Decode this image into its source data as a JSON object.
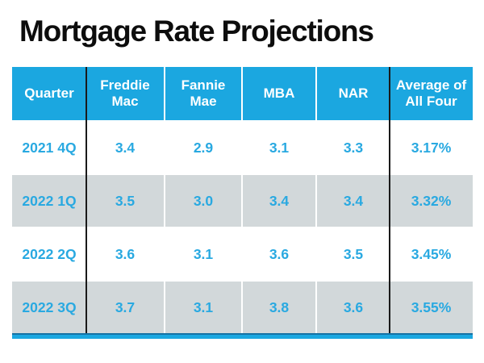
{
  "title": "Mortgage Rate Projections",
  "chart_data": {
    "type": "table",
    "title": "Mortgage Rate Projections",
    "columns": [
      "Quarter",
      "Freddie Mac",
      "Fannie Mae",
      "MBA",
      "NAR",
      "Average of All Four"
    ],
    "rows": [
      [
        "2021 4Q",
        "3.4",
        "2.9",
        "3.1",
        "3.3",
        "3.17%"
      ],
      [
        "2022 1Q",
        "3.5",
        "3.0",
        "3.4",
        "3.4",
        "3.32%"
      ],
      [
        "2022 2Q",
        "3.6",
        "3.1",
        "3.6",
        "3.5",
        "3.45%"
      ],
      [
        "2022 3Q",
        "3.7",
        "3.1",
        "3.8",
        "3.6",
        "3.55%"
      ]
    ],
    "layout": {
      "row_striping": "white / light-gray alternating starting white",
      "dark_column_dividers_after": [
        "Quarter",
        "NAR"
      ],
      "bottom_accent_bar": true
    }
  },
  "colors": {
    "header_bg": "#1ba7e0",
    "accent_blue": "#1ba7e0",
    "row_alt_bg": "#d2d8da",
    "data_text": "#29a9e1",
    "header_text": "#ffffff",
    "divider_dark": "#1a1a1a",
    "bottom_bar_edge": "#1572a4",
    "title_text": "#0d0d0d",
    "background": "#ffffff"
  }
}
